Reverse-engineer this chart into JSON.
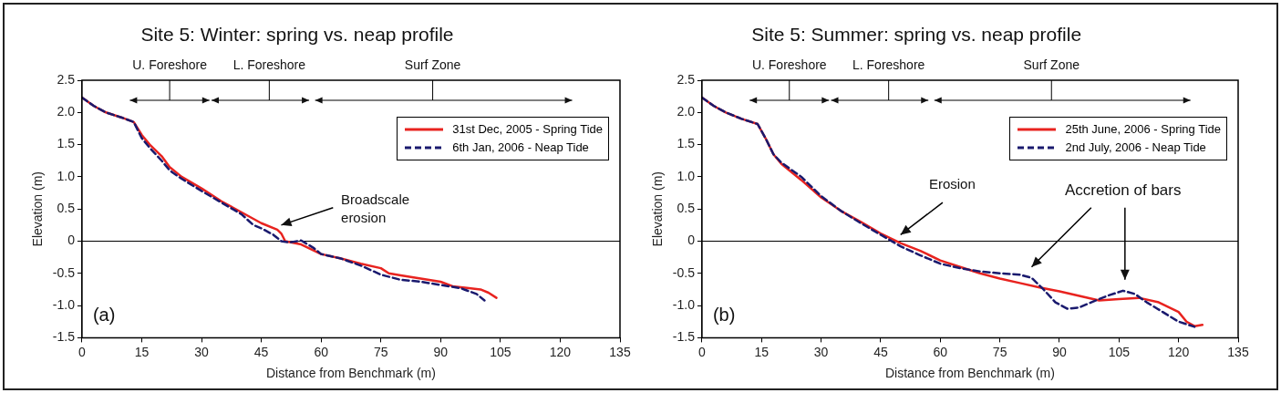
{
  "chart_data": [
    {
      "type": "line",
      "title": "Site 5: Winter: spring vs. neap profile",
      "xlabel": "Distance from Benchmark (m)",
      "ylabel": "Elevation (m)",
      "xlim": [
        0,
        135
      ],
      "xticks": [
        0,
        15,
        30,
        45,
        60,
        75,
        90,
        105,
        120,
        135
      ],
      "ylim": [
        -1.5,
        2.5
      ],
      "yticks": [
        {
          "value": -1.5,
          "label": "-1.5"
        },
        {
          "value": -1,
          "label": "-1.0"
        },
        {
          "value": -0.5,
          "label": "-0.5"
        },
        0,
        {
          "value": 0.5,
          "label": "0.5"
        },
        {
          "value": 1,
          "label": "1.0"
        },
        {
          "value": 1.5,
          "label": "1.5"
        },
        {
          "value": 2,
          "label": "2.0"
        },
        {
          "value": 2.5,
          "label": "2.5"
        }
      ],
      "grid": false,
      "legend": "top right",
      "marker": "none",
      "ref_lines": [
        {
          "axis": "y",
          "value": 0,
          "color": "#000000"
        }
      ],
      "annotations": [
        "U. Foreshore",
        "L. Foreshore",
        "Surf Zone",
        "Broadscale erosion",
        "(a)"
      ],
      "series": [
        {
          "name": "31st Dec, 2005 - Spring Tide",
          "color": "#e8231f",
          "line_style": "solid",
          "x": [
            0,
            3,
            6,
            10,
            13,
            15,
            17,
            20,
            22,
            25,
            30,
            35,
            40,
            45,
            49,
            50,
            51,
            55,
            60,
            65,
            70,
            75,
            77,
            80,
            85,
            90,
            93,
            100,
            102,
            104
          ],
          "values": [
            2.23,
            2.1,
            2.0,
            1.92,
            1.85,
            1.65,
            1.5,
            1.32,
            1.15,
            1.0,
            0.82,
            0.62,
            0.45,
            0.28,
            0.18,
            0.12,
            0.0,
            -0.05,
            -0.2,
            -0.27,
            -0.35,
            -0.42,
            -0.5,
            -0.53,
            -0.58,
            -0.63,
            -0.7,
            -0.75,
            -0.8,
            -0.88
          ]
        },
        {
          "name": "6th Jan, 2006 - Neap Tide",
          "color": "#1a1a6e",
          "line_style": "dashed",
          "x": [
            0,
            3,
            6,
            10,
            13,
            15,
            17,
            20,
            22,
            25,
            30,
            35,
            40,
            43,
            45,
            48,
            50,
            52,
            55,
            58,
            60,
            65,
            70,
            75,
            80,
            85,
            90,
            95,
            99,
            101
          ],
          "values": [
            2.23,
            2.1,
            2.0,
            1.92,
            1.85,
            1.6,
            1.45,
            1.25,
            1.1,
            0.97,
            0.78,
            0.6,
            0.42,
            0.25,
            0.2,
            0.1,
            0.0,
            -0.02,
            0.01,
            -0.1,
            -0.2,
            -0.27,
            -0.38,
            -0.52,
            -0.6,
            -0.63,
            -0.68,
            -0.73,
            -0.82,
            -0.92
          ]
        }
      ]
    },
    {
      "type": "line",
      "title": "Site 5: Summer: spring vs. neap profile",
      "xlabel": "Distance from Benchmark (m)",
      "ylabel": "Elevation (m)",
      "xlim": [
        0,
        135
      ],
      "xticks": [
        0,
        15,
        30,
        45,
        60,
        75,
        90,
        105,
        120,
        135
      ],
      "ylim": [
        -1.5,
        2.5
      ],
      "yticks": [
        {
          "value": -1.5,
          "label": "-1.5"
        },
        {
          "value": -1,
          "label": "-1.0"
        },
        {
          "value": -0.5,
          "label": "-0.5"
        },
        0,
        {
          "value": 0.5,
          "label": "0.5"
        },
        {
          "value": 1,
          "label": "1.0"
        },
        {
          "value": 1.5,
          "label": "1.5"
        },
        {
          "value": 2,
          "label": "2.0"
        },
        {
          "value": 2.5,
          "label": "2.5"
        }
      ],
      "grid": false,
      "legend": "top right",
      "marker": "none",
      "ref_lines": [
        {
          "axis": "y",
          "value": 0,
          "color": "#000000"
        }
      ],
      "annotations": [
        "U. Foreshore",
        "L. Foreshore",
        "Surf Zone",
        "Erosion",
        "Accretion of bars",
        "(b)"
      ],
      "series": [
        {
          "name": "25th June, 2006 - Spring Tide",
          "color": "#e8231f",
          "line_style": "solid",
          "x": [
            0,
            3,
            6,
            10,
            14,
            16,
            18,
            20,
            25,
            30,
            35,
            40,
            45,
            50,
            55,
            60,
            65,
            70,
            75,
            80,
            85,
            90,
            95,
            100,
            105,
            110,
            115,
            120,
            122,
            124,
            126
          ],
          "values": [
            2.23,
            2.1,
            2.0,
            1.9,
            1.82,
            1.6,
            1.35,
            1.2,
            0.95,
            0.68,
            0.47,
            0.3,
            0.12,
            -0.03,
            -0.15,
            -0.3,
            -0.4,
            -0.5,
            -0.58,
            -0.65,
            -0.72,
            -0.78,
            -0.85,
            -0.92,
            -0.9,
            -0.88,
            -0.95,
            -1.1,
            -1.25,
            -1.32,
            -1.3
          ]
        },
        {
          "name": "2nd July, 2006 - Neap Tide",
          "color": "#1a1a6e",
          "line_style": "dashed",
          "x": [
            0,
            3,
            6,
            10,
            14,
            16,
            18,
            20,
            25,
            30,
            35,
            40,
            45,
            50,
            55,
            60,
            65,
            70,
            75,
            80,
            83,
            86,
            89,
            92,
            95,
            98,
            102,
            106,
            109,
            112,
            116,
            120,
            124
          ],
          "values": [
            2.23,
            2.1,
            2.0,
            1.9,
            1.82,
            1.6,
            1.35,
            1.22,
            1.0,
            0.7,
            0.47,
            0.28,
            0.1,
            -0.08,
            -0.22,
            -0.35,
            -0.42,
            -0.47,
            -0.5,
            -0.52,
            -0.57,
            -0.75,
            -0.95,
            -1.05,
            -1.03,
            -0.95,
            -0.85,
            -0.77,
            -0.82,
            -0.95,
            -1.1,
            -1.25,
            -1.33
          ]
        }
      ]
    }
  ]
}
